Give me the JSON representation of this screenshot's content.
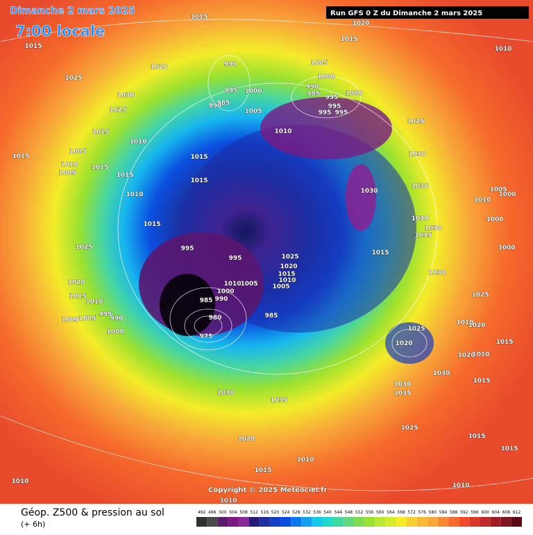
{
  "header": {
    "date": "Dimanche 2 mars 2025",
    "time": "7:00 locale",
    "run": "Run GFS 0 Z du Dimanche 2 mars 2025"
  },
  "copyright": "Copyright © 2025 Meteociel.fr",
  "legend": {
    "title": "Géop. Z500 & pression au sol",
    "subtitle": "(+ 6h)",
    "ticks": [
      492,
      496,
      500,
      504,
      508,
      512,
      516,
      520,
      524,
      528,
      532,
      536,
      540,
      544,
      548,
      552,
      556,
      560,
      564,
      568,
      572,
      576,
      580,
      584,
      588,
      592,
      596,
      600,
      604,
      608,
      612
    ]
  },
  "isobar_labels": [
    "1015",
    "1020",
    "1015",
    "1015",
    "1010",
    "1020",
    "990",
    "1005",
    "1025",
    "1000",
    "990",
    "985",
    "995",
    "1000",
    "1030",
    "995",
    "1000",
    "985",
    "990",
    "995",
    "1005",
    "1025",
    "995",
    "995",
    "1010",
    "1025",
    "1015",
    "1010",
    "1005",
    "1015",
    "1015",
    "1030",
    "1010",
    "1005",
    "1015",
    "1015",
    "1015",
    "1030",
    "1030",
    "1005",
    "1010",
    "1010",
    "1000",
    "1030",
    "1015",
    "1000",
    "1030",
    "1035",
    "1025",
    "995",
    "995",
    "1025",
    "1015",
    "1000",
    "1020",
    "1015",
    "1030",
    "1010",
    "1020",
    "1005",
    "1010",
    "1005",
    "1000",
    "1015",
    "1025",
    "1010",
    "990",
    "985",
    "980",
    "985",
    "995",
    "990",
    "1005",
    "1005",
    "1010",
    "1020",
    "1025",
    "975",
    "1000",
    "1015",
    "1020",
    "1010",
    "1020",
    "1030",
    "1015",
    "1030",
    "1035",
    "1030",
    "1035",
    "1025",
    "1015",
    "1020",
    "1015",
    "1010",
    "1015",
    "1010",
    "1010",
    "1010"
  ]
}
